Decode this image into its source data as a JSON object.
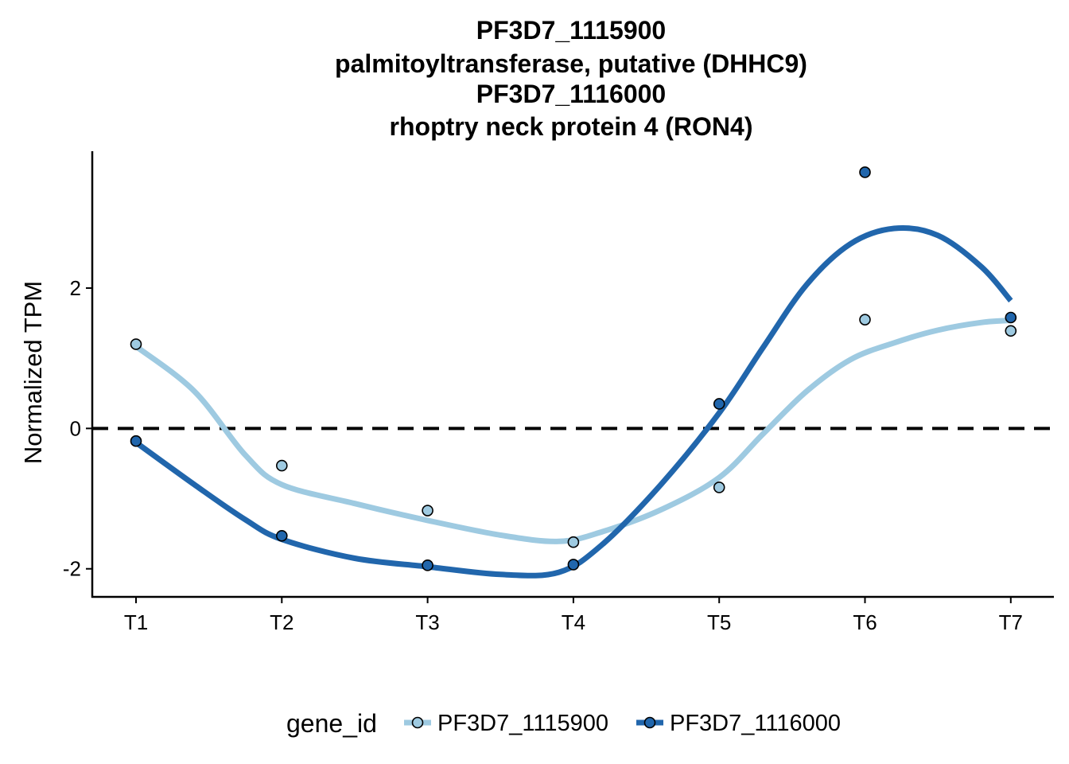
{
  "chart_data": {
    "type": "line",
    "title_lines": [
      "PF3D7_1115900",
      "palmitoyltransferase, putative (DHHC9)",
      "PF3D7_1116000",
      "rhoptry neck protein 4 (RON4)"
    ],
    "xlabel": "",
    "ylabel": "Normalized TPM",
    "categories": [
      "T1",
      "T2",
      "T3",
      "T4",
      "T5",
      "T6",
      "T7"
    ],
    "yticks": [
      -2,
      0,
      2
    ],
    "ylim": [
      -2.4,
      3.95
    ],
    "reference_line": {
      "y": 0,
      "style": "dashed"
    },
    "grid": false,
    "legend": {
      "title": "gene_id",
      "position": "bottom"
    },
    "series": [
      {
        "name": "PF3D7_1115900",
        "color": "#9ECAE1",
        "points": [
          1.2,
          -0.53,
          -1.17,
          -1.62,
          -0.84,
          1.55,
          1.39
        ],
        "smooth": [
          1.17,
          0.53,
          -0.38,
          -0.8,
          -1.07,
          -1.31,
          -1.52,
          -1.61,
          -1.47,
          -1.16,
          -0.7,
          -0.08,
          0.53,
          0.98,
          1.22,
          1.4,
          1.51,
          1.54
        ]
      },
      {
        "name": "PF3D7_1116000",
        "color": "#2166AC",
        "points": [
          -0.18,
          -1.53,
          -1.95,
          -1.94,
          0.35,
          3.65,
          1.58
        ]
      }
    ],
    "smooth_x": [
      1,
      1.4,
      1.75,
      2,
      2.5,
      3,
      3.5,
      3.9,
      4.2,
      4.6,
      5,
      5.3,
      5.6,
      5.9,
      6.2,
      6.5,
      6.8,
      7
    ],
    "smooth_y2": [
      -0.2,
      -0.8,
      -1.3,
      -1.58,
      -1.85,
      -1.97,
      -2.08,
      -2.05,
      -1.65,
      -0.8,
      0.22,
      1.15,
      2.05,
      2.63,
      2.85,
      2.75,
      2.3,
      1.82
    ]
  }
}
